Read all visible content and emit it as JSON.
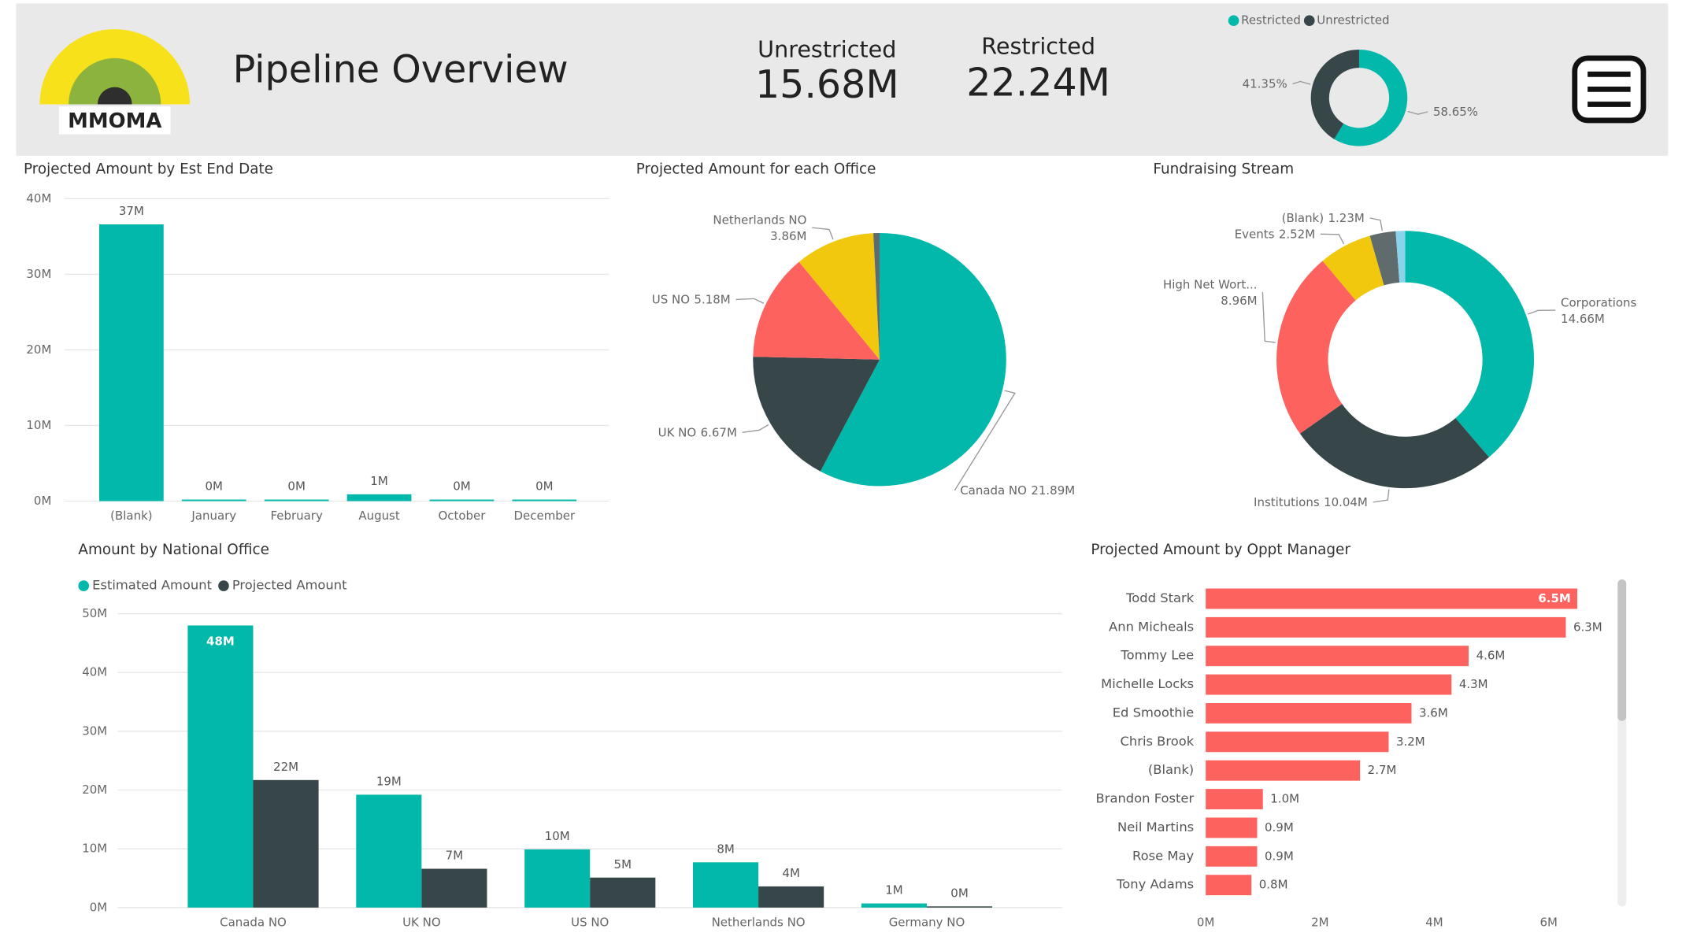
{
  "header": {
    "logo_text": "MMOMA",
    "title": "Pipeline Overview",
    "kpis": [
      {
        "label": "Unrestricted",
        "value": "15.68M"
      },
      {
        "label": "Restricted",
        "value": "22.24M"
      }
    ]
  },
  "chart_data": [
    {
      "type": "pie",
      "donut": true,
      "categories": [
        "Restricted",
        "Unrestricted"
      ],
      "values": [
        58.65,
        41.35
      ],
      "value_labels": [
        "58.65%",
        "41.35%"
      ],
      "colors": [
        "#01b8aa",
        "#374649"
      ],
      "legend": "top"
    },
    {
      "type": "bar",
      "title": "Projected Amount by Est End Date",
      "categories": [
        "(Blank)",
        "January",
        "February",
        "August",
        "October",
        "December"
      ],
      "values": [
        36.6,
        0.2,
        0.2,
        0.9,
        0.2,
        0.2
      ],
      "value_labels": [
        "37M",
        "0M",
        "0M",
        "1M",
        "0M",
        "0M"
      ],
      "color": "#01b8aa",
      "ylim": [
        0,
        40
      ],
      "yticks": [
        {
          "value": 0,
          "label": "0M"
        },
        {
          "value": 10,
          "label": "10M"
        },
        {
          "value": 20,
          "label": "20M"
        },
        {
          "value": 30,
          "label": "30M"
        },
        {
          "value": 40,
          "label": "40M"
        }
      ],
      "grid": true
    },
    {
      "type": "pie",
      "title": "Projected Amount for each Office",
      "categories": [
        "Canada NO",
        "UK NO",
        "US NO",
        "Netherlands NO",
        null
      ],
      "values": [
        21.89,
        6.67,
        5.18,
        3.86,
        0.3
      ],
      "value_labels": [
        "21.89M",
        "6.67M",
        "5.18M",
        "3.86M",
        null
      ],
      "colors": [
        "#01b8aa",
        "#374649",
        "#fd625e",
        "#f2c80f",
        "#5f6b6d"
      ]
    },
    {
      "type": "pie",
      "donut": true,
      "title": "Fundraising Stream",
      "categories": [
        "Corporations",
        "Institutions",
        "High Net Wort...",
        "Events",
        "(Blank)",
        null
      ],
      "values": [
        14.66,
        10.04,
        8.96,
        2.52,
        1.23,
        0.45
      ],
      "value_labels": [
        "14.66M",
        "10.04M",
        "8.96M",
        "2.52M",
        "1.23M",
        null
      ],
      "colors": [
        "#01b8aa",
        "#374649",
        "#fd625e",
        "#f2c80f",
        "#5f6b6d",
        "#8ad4eb"
      ]
    },
    {
      "type": "bar",
      "title": "Amount by National Office",
      "categories": [
        "Canada NO",
        "UK NO",
        "US NO",
        "Netherlands NO",
        "Germany NO"
      ],
      "series": [
        {
          "name": "Estimated Amount",
          "color": "#01b8aa",
          "values": [
            48,
            19.2,
            9.9,
            7.7,
            0.7
          ],
          "value_labels": [
            "48M",
            "19M",
            "10M",
            "8M",
            "1M"
          ]
        },
        {
          "name": "Projected Amount",
          "color": "#374649",
          "values": [
            21.7,
            6.6,
            5.1,
            3.6,
            0.2
          ],
          "value_labels": [
            "22M",
            "7M",
            "5M",
            "4M",
            "0M"
          ]
        }
      ],
      "ylim": [
        0,
        50
      ],
      "yticks": [
        {
          "value": 0,
          "label": "0M"
        },
        {
          "value": 10,
          "label": "10M"
        },
        {
          "value": 20,
          "label": "20M"
        },
        {
          "value": 30,
          "label": "30M"
        },
        {
          "value": 40,
          "label": "40M"
        },
        {
          "value": 50,
          "label": "50M"
        }
      ],
      "grid": true,
      "legend": "top-left"
    },
    {
      "type": "hbar",
      "title": "Projected Amount by Oppt Manager",
      "categories": [
        "Todd Stark",
        "Ann Micheals",
        "Tommy Lee",
        "Michelle Locks",
        "Ed Smoothie",
        "Chris Brook",
        "(Blank)",
        "Brandon Foster",
        "Neil Martins",
        "Rose May",
        "Tony Adams"
      ],
      "values": [
        6.5,
        6.3,
        4.6,
        4.3,
        3.6,
        3.2,
        2.7,
        1.0,
        0.9,
        0.9,
        0.8
      ],
      "value_labels": [
        "6.5M",
        "6.3M",
        "4.6M",
        "4.3M",
        "3.6M",
        "3.2M",
        "2.7M",
        "1.0M",
        "0.9M",
        "0.9M",
        "0.8M"
      ],
      "color": "#fd625e",
      "xlim": [
        0,
        7
      ],
      "xticks": [
        {
          "value": 0,
          "label": "0M"
        },
        {
          "value": 2,
          "label": "2M"
        },
        {
          "value": 4,
          "label": "4M"
        },
        {
          "value": 6,
          "label": "6M"
        }
      ],
      "grid": false
    }
  ]
}
